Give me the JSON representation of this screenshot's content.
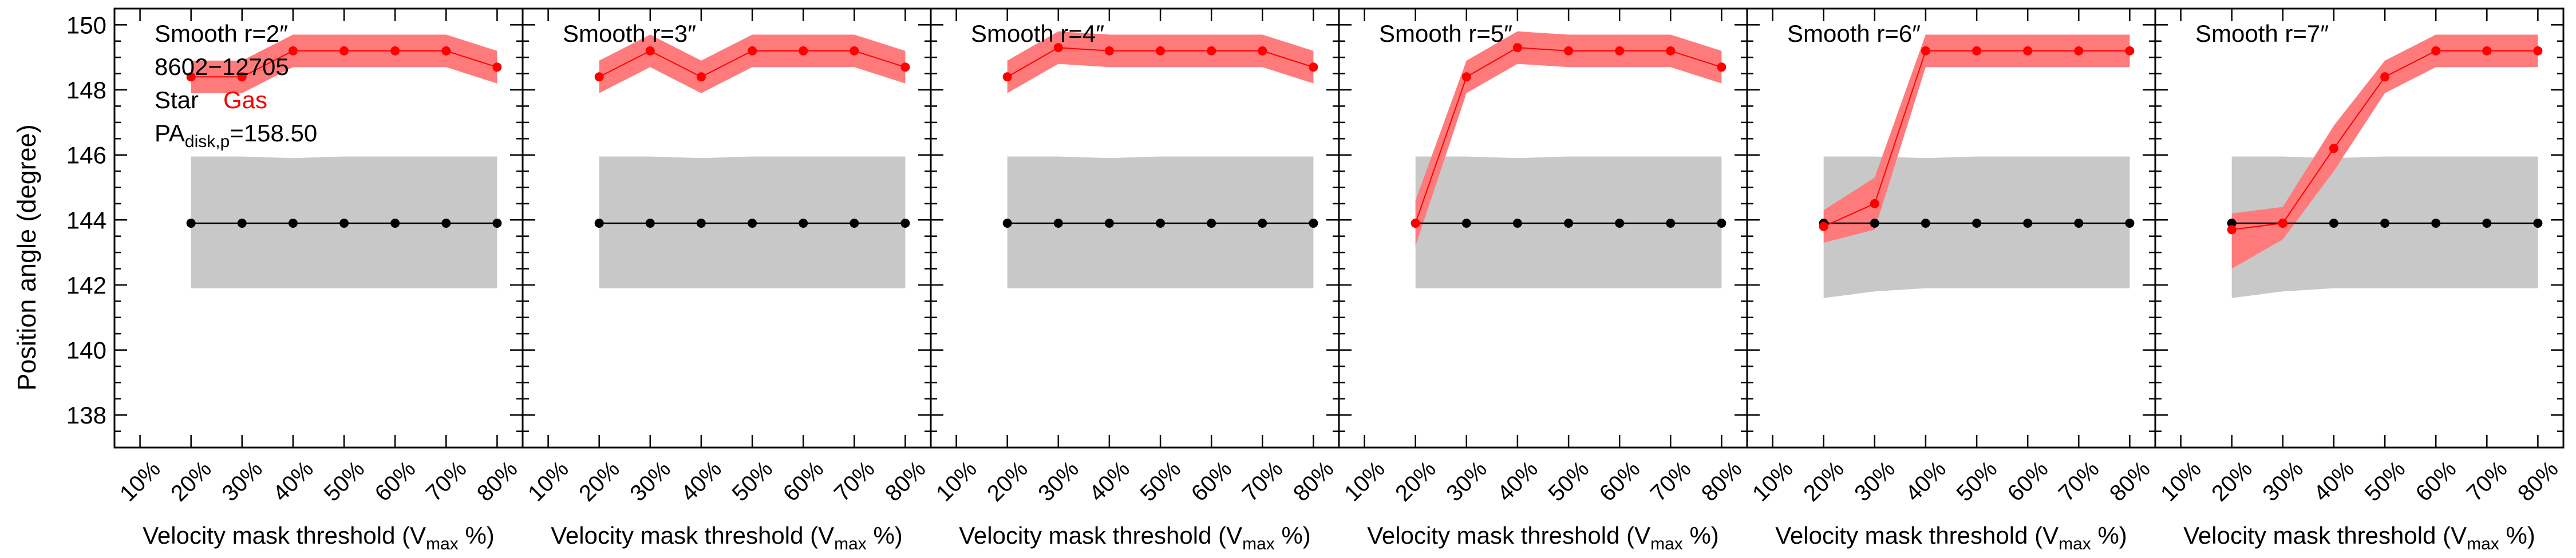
{
  "figure": {
    "ylabel": "Position angle (degree)",
    "object_id": "8602−12705",
    "legend": {
      "star": "Star",
      "gas": "Gas"
    },
    "pa_label": {
      "main": "PA",
      "sub": "disk,p",
      "value": "=158.50"
    }
  },
  "colors": {
    "star": "#000000",
    "star_band": "#c8c8c8",
    "gas": "#ff0000",
    "gas_band": "#ff7b7b",
    "axis": "#000000"
  },
  "chart_data": [
    {
      "type": "line",
      "title": "Smooth r=2″",
      "xlabel": {
        "main": "Velocity mask threshold (V",
        "sub": "max",
        "tail": " %)"
      },
      "ylabel": "Position angle (degree)",
      "x_tick_labels": [
        "10%",
        "20%",
        "30%",
        "40%",
        "50%",
        "60%",
        "70%",
        "80%"
      ],
      "xlim": [
        5,
        85
      ],
      "ylim": [
        137,
        150.5
      ],
      "y_ticks": [
        138,
        140,
        142,
        144,
        146,
        148,
        150
      ],
      "grid": false,
      "series": [
        {
          "name": "Star",
          "x": [
            20,
            30,
            40,
            50,
            60,
            70,
            80
          ],
          "y": [
            143.9,
            143.9,
            143.9,
            143.9,
            143.9,
            143.9,
            143.9
          ],
          "lo": [
            141.9,
            141.9,
            141.9,
            141.9,
            141.9,
            141.9,
            141.9
          ],
          "hi": [
            145.95,
            145.95,
            145.9,
            145.95,
            145.95,
            145.95,
            145.95
          ]
        },
        {
          "name": "Gas",
          "x": [
            20,
            30,
            40,
            50,
            60,
            70,
            80
          ],
          "y": [
            148.4,
            148.4,
            149.2,
            149.2,
            149.2,
            149.2,
            148.7
          ],
          "lo": [
            147.9,
            147.9,
            148.7,
            148.7,
            148.7,
            148.7,
            148.2
          ],
          "hi": [
            148.9,
            148.9,
            149.7,
            149.7,
            149.7,
            149.7,
            149.2
          ]
        }
      ]
    },
    {
      "type": "line",
      "title": "Smooth r=3″",
      "xlabel": {
        "main": "Velocity mask threshold (V",
        "sub": "max",
        "tail": " %)"
      },
      "x_tick_labels": [
        "10%",
        "20%",
        "30%",
        "40%",
        "50%",
        "60%",
        "70%",
        "80%"
      ],
      "xlim": [
        5,
        85
      ],
      "ylim": [
        137,
        150.5
      ],
      "y_ticks": [
        138,
        140,
        142,
        144,
        146,
        148,
        150
      ],
      "grid": false,
      "series": [
        {
          "name": "Star",
          "x": [
            20,
            30,
            40,
            50,
            60,
            70,
            80
          ],
          "y": [
            143.9,
            143.9,
            143.9,
            143.9,
            143.9,
            143.9,
            143.9
          ],
          "lo": [
            141.9,
            141.9,
            141.9,
            141.9,
            141.9,
            141.9,
            141.9
          ],
          "hi": [
            145.95,
            145.95,
            145.9,
            145.95,
            145.95,
            145.95,
            145.95
          ]
        },
        {
          "name": "Gas",
          "x": [
            20,
            30,
            40,
            50,
            60,
            70,
            80
          ],
          "y": [
            148.4,
            149.2,
            148.4,
            149.2,
            149.2,
            149.2,
            148.7
          ],
          "lo": [
            147.9,
            148.7,
            147.9,
            148.7,
            148.7,
            148.7,
            148.2
          ],
          "hi": [
            148.9,
            149.7,
            148.9,
            149.7,
            149.7,
            149.7,
            149.2
          ]
        }
      ]
    },
    {
      "type": "line",
      "title": "Smooth r=4″",
      "xlabel": {
        "main": "Velocity mask threshold (V",
        "sub": "max",
        "tail": " %)"
      },
      "x_tick_labels": [
        "10%",
        "20%",
        "30%",
        "40%",
        "50%",
        "60%",
        "70%",
        "80%"
      ],
      "xlim": [
        5,
        85
      ],
      "ylim": [
        137,
        150.5
      ],
      "y_ticks": [
        138,
        140,
        142,
        144,
        146,
        148,
        150
      ],
      "grid": false,
      "series": [
        {
          "name": "Star",
          "x": [
            20,
            30,
            40,
            50,
            60,
            70,
            80
          ],
          "y": [
            143.9,
            143.9,
            143.9,
            143.9,
            143.9,
            143.9,
            143.9
          ],
          "lo": [
            141.9,
            141.9,
            141.9,
            141.9,
            141.9,
            141.9,
            141.9
          ],
          "hi": [
            145.95,
            145.95,
            145.9,
            145.95,
            145.95,
            145.95,
            145.95
          ]
        },
        {
          "name": "Gas",
          "x": [
            20,
            30,
            40,
            50,
            60,
            70,
            80
          ],
          "y": [
            148.4,
            149.3,
            149.2,
            149.2,
            149.2,
            149.2,
            148.7
          ],
          "lo": [
            147.9,
            148.8,
            148.7,
            148.7,
            148.7,
            148.7,
            148.2
          ],
          "hi": [
            148.9,
            149.8,
            149.7,
            149.7,
            149.7,
            149.7,
            149.2
          ]
        }
      ]
    },
    {
      "type": "line",
      "title": "Smooth r=5″",
      "xlabel": {
        "main": "Velocity mask threshold (V",
        "sub": "max",
        "tail": " %)"
      },
      "x_tick_labels": [
        "10%",
        "20%",
        "30%",
        "40%",
        "50%",
        "60%",
        "70%",
        "80%"
      ],
      "xlim": [
        5,
        85
      ],
      "ylim": [
        137,
        150.5
      ],
      "y_ticks": [
        138,
        140,
        142,
        144,
        146,
        148,
        150
      ],
      "grid": false,
      "series": [
        {
          "name": "Star",
          "x": [
            20,
            30,
            40,
            50,
            60,
            70,
            80
          ],
          "y": [
            143.9,
            143.9,
            143.9,
            143.9,
            143.9,
            143.9,
            143.9
          ],
          "lo": [
            141.9,
            141.9,
            141.9,
            141.9,
            141.9,
            141.9,
            141.9
          ],
          "hi": [
            145.95,
            145.95,
            145.9,
            145.95,
            145.95,
            145.95,
            145.95
          ]
        },
        {
          "name": "Gas",
          "x": [
            20,
            30,
            40,
            50,
            60,
            70,
            80
          ],
          "y": [
            143.9,
            148.4,
            149.3,
            149.2,
            149.2,
            149.2,
            148.7
          ],
          "lo": [
            143.2,
            147.9,
            148.8,
            148.7,
            148.7,
            148.7,
            148.2
          ],
          "hi": [
            144.6,
            148.9,
            149.8,
            149.7,
            149.7,
            149.7,
            149.2
          ]
        }
      ]
    },
    {
      "type": "line",
      "title": "Smooth r=6″",
      "xlabel": {
        "main": "Velocity mask threshold (V",
        "sub": "max",
        "tail": " %)"
      },
      "x_tick_labels": [
        "10%",
        "20%",
        "30%",
        "40%",
        "50%",
        "60%",
        "70%",
        "80%"
      ],
      "xlim": [
        5,
        85
      ],
      "ylim": [
        137,
        150.5
      ],
      "y_ticks": [
        138,
        140,
        142,
        144,
        146,
        148,
        150
      ],
      "grid": false,
      "series": [
        {
          "name": "Star",
          "x": [
            20,
            30,
            40,
            50,
            60,
            70,
            80
          ],
          "y": [
            143.9,
            143.9,
            143.9,
            143.9,
            143.9,
            143.9,
            143.9
          ],
          "lo": [
            141.6,
            141.8,
            141.9,
            141.9,
            141.9,
            141.9,
            141.9
          ],
          "hi": [
            145.95,
            145.95,
            145.9,
            145.95,
            145.95,
            145.95,
            145.95
          ]
        },
        {
          "name": "Gas",
          "x": [
            20,
            30,
            40,
            50,
            60,
            70,
            80
          ],
          "y": [
            143.8,
            144.5,
            149.2,
            149.2,
            149.2,
            149.2,
            149.2
          ],
          "lo": [
            143.3,
            143.7,
            148.7,
            148.7,
            148.7,
            148.7,
            148.7
          ],
          "hi": [
            144.3,
            145.3,
            149.7,
            149.7,
            149.7,
            149.7,
            149.7
          ]
        }
      ]
    },
    {
      "type": "line",
      "title": "Smooth r=7″",
      "xlabel": {
        "main": "Velocity mask threshold (V",
        "sub": "max",
        "tail": " %)"
      },
      "x_tick_labels": [
        "10%",
        "20%",
        "30%",
        "40%",
        "50%",
        "60%",
        "70%",
        "80%"
      ],
      "xlim": [
        5,
        85
      ],
      "ylim": [
        137,
        150.5
      ],
      "y_ticks": [
        138,
        140,
        142,
        144,
        146,
        148,
        150
      ],
      "grid": false,
      "series": [
        {
          "name": "Star",
          "x": [
            20,
            30,
            40,
            50,
            60,
            70,
            80
          ],
          "y": [
            143.9,
            143.9,
            143.9,
            143.9,
            143.9,
            143.9,
            143.9
          ],
          "lo": [
            141.6,
            141.8,
            141.9,
            141.9,
            141.9,
            141.9,
            141.9
          ],
          "hi": [
            145.95,
            145.95,
            145.9,
            145.95,
            145.95,
            145.95,
            145.95
          ]
        },
        {
          "name": "Gas",
          "x": [
            20,
            30,
            40,
            50,
            60,
            70,
            80
          ],
          "y": [
            143.7,
            143.9,
            146.2,
            148.4,
            149.2,
            149.2,
            149.2
          ],
          "lo": [
            142.5,
            143.4,
            145.5,
            147.9,
            148.7,
            148.7,
            148.7
          ],
          "hi": [
            144.2,
            144.4,
            146.9,
            148.9,
            149.7,
            149.7,
            149.7
          ]
        }
      ]
    }
  ]
}
